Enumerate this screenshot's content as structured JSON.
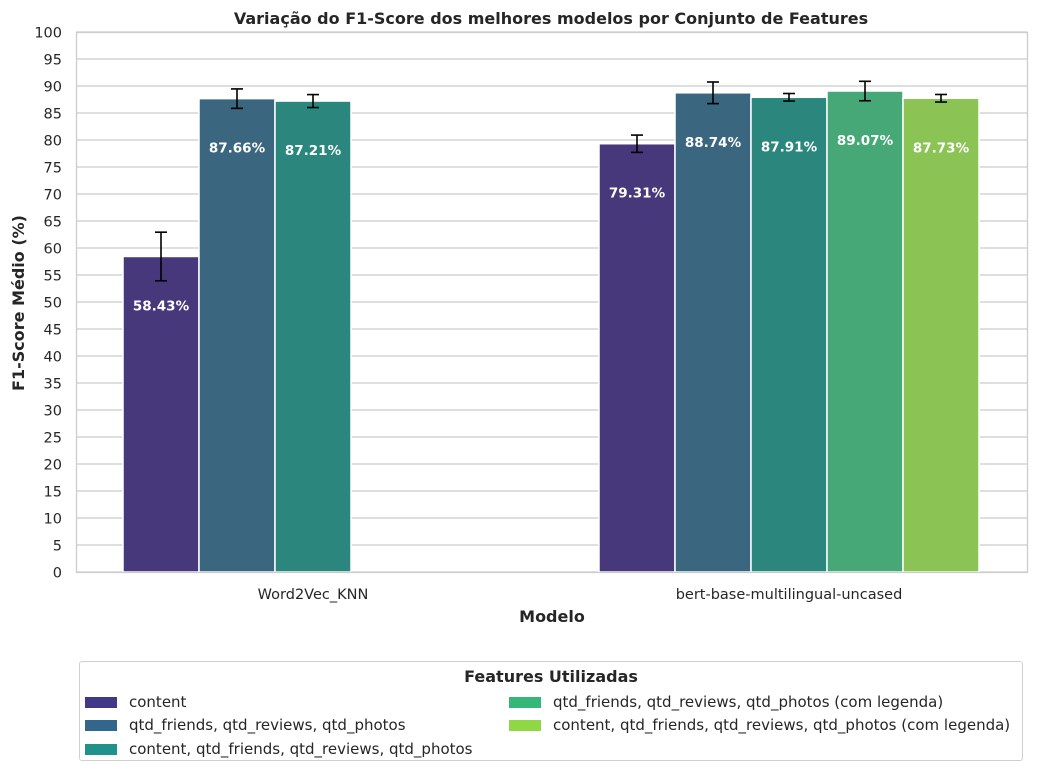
{
  "chart_data": {
    "type": "bar",
    "title": "Variação do F1-Score dos melhores modelos por Conjunto de Features",
    "xlabel": "Modelo",
    "ylabel": "F1-Score Médio (%)",
    "ylim": [
      0,
      100
    ],
    "yticks": [
      "0",
      "5",
      "10",
      "15",
      "20",
      "25",
      "30",
      "35",
      "40",
      "45",
      "50",
      "55",
      "60",
      "65",
      "70",
      "75",
      "80",
      "85",
      "90",
      "95",
      "100"
    ],
    "grid": true,
    "categories": [
      "Word2Vec_KNN",
      "bert-base-multilingual-uncased"
    ],
    "series": [
      {
        "name": "content",
        "color": "#46387a",
        "values": [
          58.43,
          79.31
        ],
        "errors": [
          4.5,
          1.6
        ],
        "labels": [
          "58.43%",
          "79.31%"
        ]
      },
      {
        "name": "qtd_friends, qtd_reviews, qtd_photos",
        "color": "#3b6680",
        "values": [
          87.66,
          88.74
        ],
        "errors": [
          1.8,
          2.0
        ],
        "labels": [
          "87.66%",
          "88.74%"
        ]
      },
      {
        "name": "content, qtd_friends, qtd_reviews, qtd_photos",
        "color": "#2b877d",
        "values": [
          87.21,
          87.91
        ],
        "errors": [
          1.2,
          0.7
        ],
        "labels": [
          "87.21%",
          "87.91%"
        ]
      },
      {
        "name": "qtd_friends, qtd_reviews, qtd_photos (com legenda)",
        "color": "#46a877",
        "values": [
          null,
          89.07
        ],
        "errors": [
          null,
          1.8
        ],
        "labels": [
          "",
          "89.07%"
        ]
      },
      {
        "name": "content, qtd_friends, qtd_reviews, qtd_photos (com legenda)",
        "color": "#8bc455",
        "values": [
          null,
          87.73
        ],
        "errors": [
          null,
          0.7
        ],
        "labels": [
          "",
          "87.73%"
        ]
      }
    ],
    "legend": {
      "title": "Features Utilizadas",
      "placement": "bottom",
      "items": [
        {
          "label": "content",
          "color": "#413888"
        },
        {
          "label": "qtd_friends, qtd_reviews, qtd_photos",
          "color": "#33668d"
        },
        {
          "label": "content, qtd_friends, qtd_reviews, qtd_photos",
          "color": "#21918c"
        },
        {
          "label": "qtd_friends, qtd_reviews, qtd_photos (com legenda)",
          "color": "#35b779"
        },
        {
          "label": "content, qtd_friends, qtd_reviews, qtd_photos (com legenda)",
          "color": "#8fd744"
        }
      ]
    }
  }
}
